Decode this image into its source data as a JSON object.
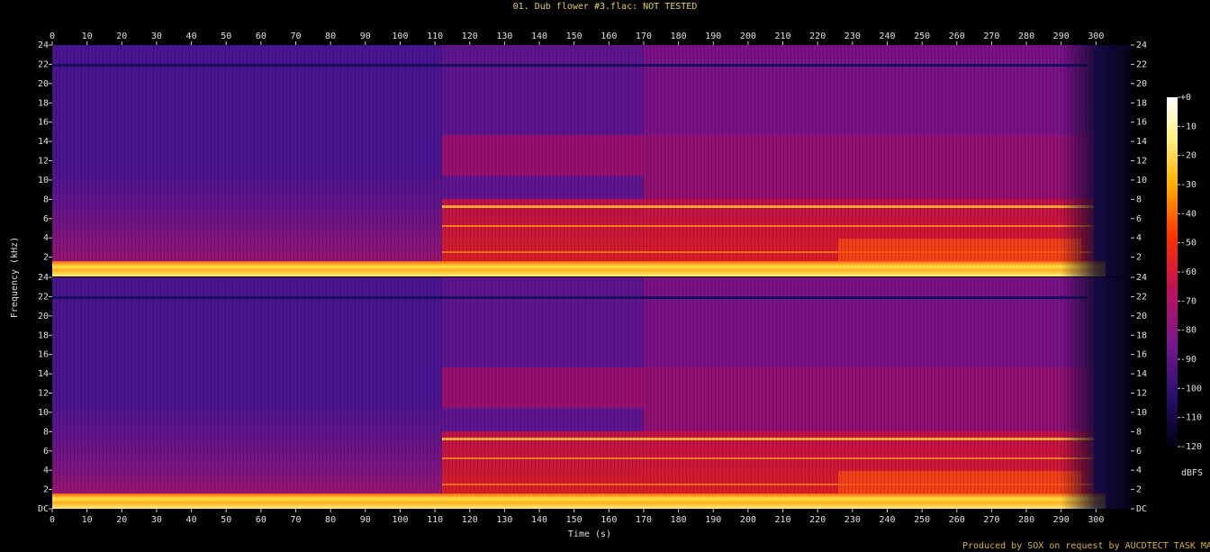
{
  "chart_data": {
    "type": "spectrogram",
    "title": "01. Dub flower #3.flac: NOT TESTED",
    "x_label": "Time (s)",
    "y_label": "Frequency (kHz)",
    "xlim": [
      0,
      310
    ],
    "xticks": [
      0,
      10,
      20,
      30,
      40,
      50,
      60,
      70,
      80,
      90,
      100,
      110,
      120,
      130,
      140,
      150,
      160,
      170,
      180,
      190,
      200,
      210,
      220,
      230,
      240,
      250,
      260,
      270,
      280,
      290,
      300
    ],
    "ylim": [
      0,
      24
    ],
    "channels": [
      {
        "yticks": [
          2,
          4,
          6,
          8,
          10,
          12,
          14,
          16,
          18,
          20,
          22,
          24
        ]
      },
      {
        "yticks": [
          {
            "value": 0,
            "label": "DC"
          },
          2,
          4,
          6,
          8,
          10,
          12,
          14,
          16,
          18,
          20,
          22,
          24
        ]
      }
    ],
    "colorbar": {
      "label": "dBFS",
      "lim": [
        -120,
        0
      ],
      "ticks": [
        {
          "value": 0,
          "label": "+0"
        },
        -10,
        -20,
        -30,
        -40,
        -50,
        -60,
        -70,
        -80,
        -90,
        -100,
        -110,
        -120
      ]
    }
  },
  "footer": "Produced by SOX on request by AUCDTECT TASK MANAGER"
}
